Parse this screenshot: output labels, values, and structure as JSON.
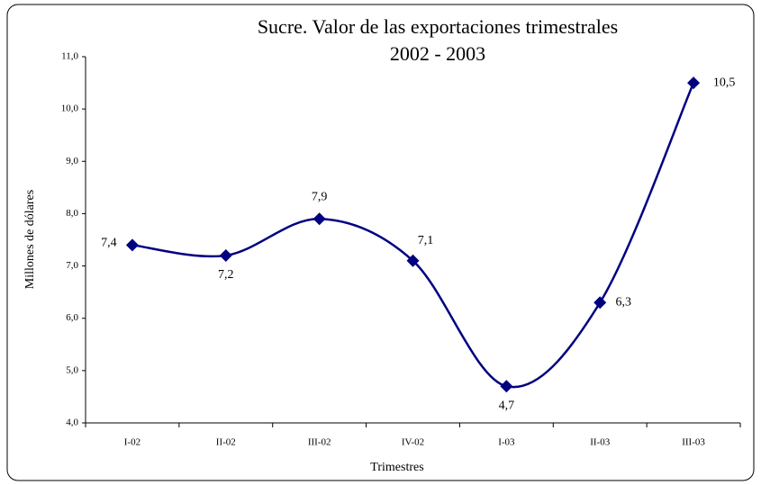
{
  "chart_data": {
    "type": "line",
    "title": [
      "Sucre. Valor de las exportaciones trimestrales",
      "2002 - 2003"
    ],
    "x_label": "Trimestres",
    "y_label": "Millones de dólares",
    "categories": [
      "I-02",
      "II-02",
      "III-02",
      "IV-02",
      "I-03",
      "II-03",
      "III-03"
    ],
    "series": [
      {
        "color": "#000080",
        "values": [
          7.4,
          7.2,
          7.9,
          7.1,
          4.7,
          6.3,
          10.5
        ],
        "value_labels": [
          "7,4",
          "7,2",
          "7,9",
          "7,1",
          "4,7",
          "6,3",
          "10,5"
        ]
      }
    ],
    "ylim": [
      4,
      11
    ],
    "yticks": [
      {
        "value": 4,
        "label": "4,0"
      },
      {
        "value": 5,
        "label": "5,0"
      },
      {
        "value": 6,
        "label": "6,0"
      },
      {
        "value": 7,
        "label": "7,0"
      },
      {
        "value": 8,
        "label": "8,0"
      },
      {
        "value": 9,
        "label": "9,0"
      },
      {
        "value": 10,
        "label": "10,0"
      },
      {
        "value": 11,
        "label": "11,0"
      }
    ],
    "smooth": true
  }
}
